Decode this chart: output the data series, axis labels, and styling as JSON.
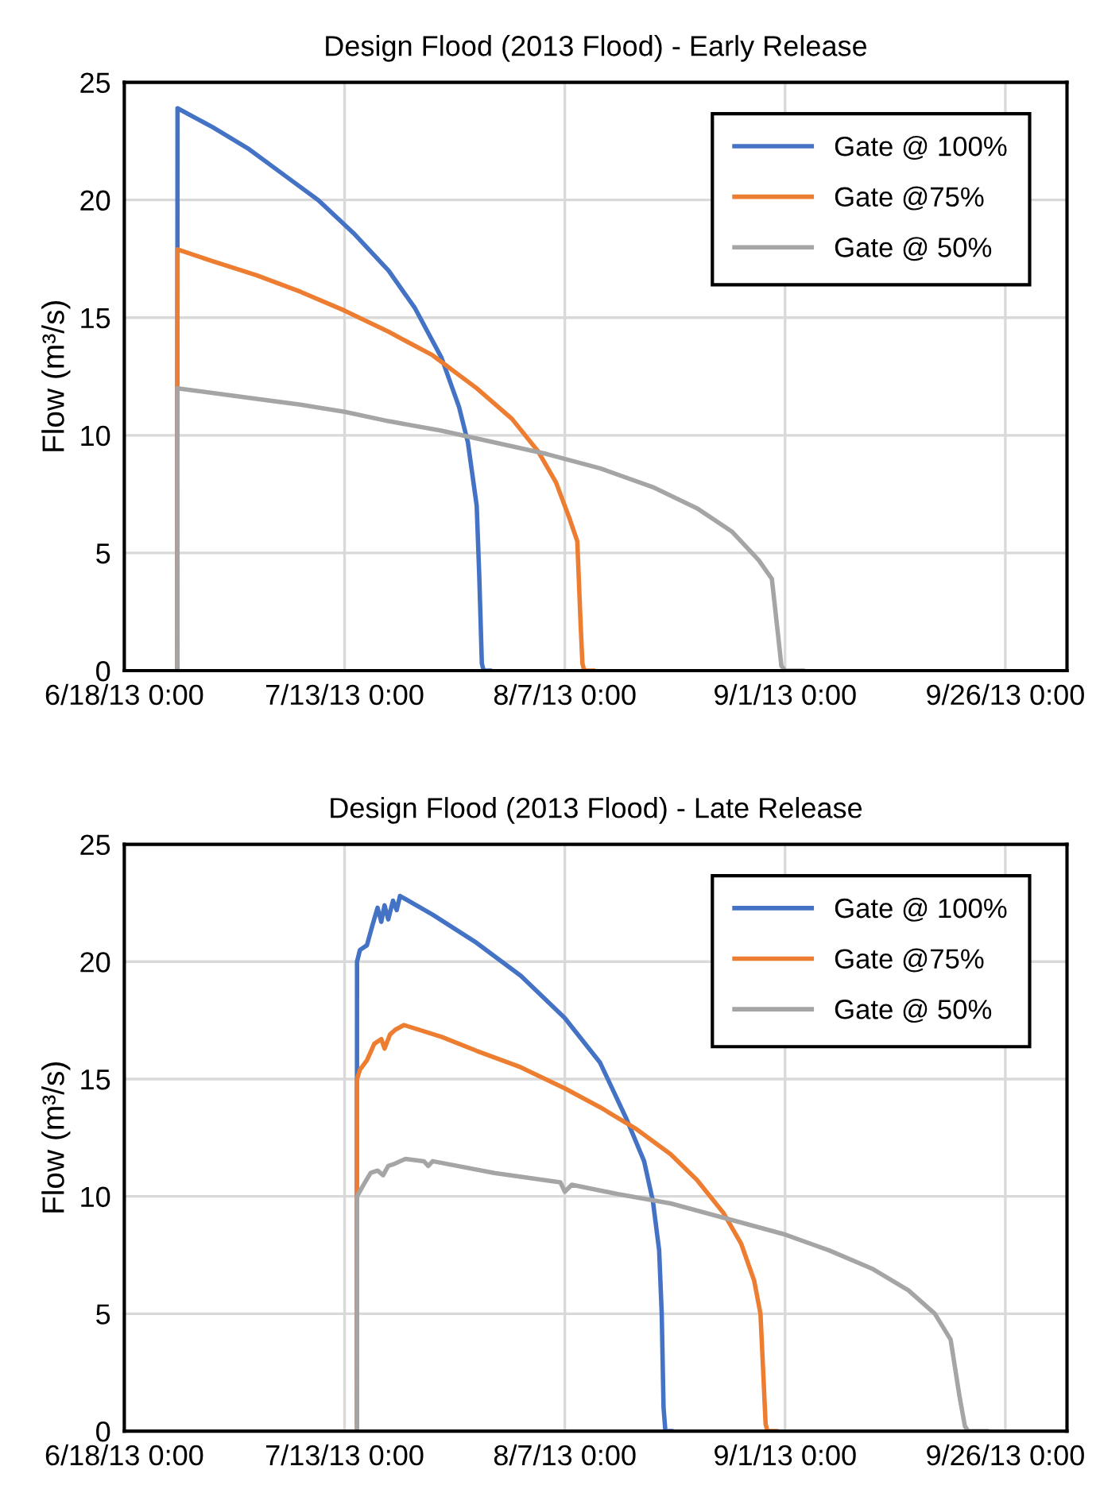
{
  "chart_data": [
    {
      "type": "line",
      "title": "Design Flood (2013 Flood) - Early Release",
      "ylabel": "Flow (m³/s)",
      "xlim": [
        "2013-06-18",
        "2013-10-03"
      ],
      "xticks": [
        {
          "value": "2013-06-18",
          "label": "6/18/13 0:00"
        },
        {
          "value": "2013-07-13",
          "label": "7/13/13 0:00"
        },
        {
          "value": "2013-08-07",
          "label": "8/7/13 0:00"
        },
        {
          "value": "2013-09-01",
          "label": "9/1/13 0:00"
        },
        {
          "value": "2013-09-26",
          "label": "9/26/13 0:00"
        }
      ],
      "ylim": [
        0,
        25
      ],
      "yticks": [
        0,
        5,
        10,
        15,
        20,
        25
      ],
      "grid": true,
      "legend": "top right",
      "marker": "none",
      "line_style": "solid",
      "series": [
        {
          "name": "Gate @ 100%",
          "color": "#4472c4",
          "x": [
            "2013-06-24T00:00",
            "2013-06-24T01:00",
            "2013-06-28",
            "2013-07-02",
            "2013-07-06",
            "2013-07-10",
            "2013-07-14",
            "2013-07-18",
            "2013-07-21",
            "2013-07-24",
            "2013-07-26",
            "2013-07-27",
            "2013-07-28",
            "2013-07-28T07:00",
            "2013-07-28T14:00",
            "2013-07-28T19:00",
            "2013-07-29T12:00"
          ],
          "values": [
            0,
            23.9,
            23.1,
            22.2,
            21.1,
            20.0,
            18.6,
            17.0,
            15.4,
            13.3,
            11.2,
            9.7,
            7.0,
            4,
            0.3,
            0,
            0
          ]
        },
        {
          "name": "Gate @75%",
          "color": "#ed7d31",
          "x": [
            "2013-06-24T00:00",
            "2013-06-24T01:00",
            "2013-06-28",
            "2013-07-03",
            "2013-07-08",
            "2013-07-13",
            "2013-07-18",
            "2013-07-23",
            "2013-07-28",
            "2013-08-01",
            "2013-08-04",
            "2013-08-06",
            "2013-08-07T12:00",
            "2013-08-08T10:00",
            "2013-08-08T19:00",
            "2013-08-09T00:00",
            "2013-08-09T05:00",
            "2013-08-10T05:00"
          ],
          "values": [
            0,
            17.9,
            17.4,
            16.8,
            16.1,
            15.3,
            14.4,
            13.4,
            12.0,
            10.7,
            9.3,
            8.0,
            6.5,
            5.5,
            2,
            0.3,
            0,
            0
          ]
        },
        {
          "name": "Gate @ 50%",
          "color": "#a5a5a5",
          "x": [
            "2013-06-24T00:00",
            "2013-06-24T01:00",
            "2013-06-30",
            "2013-07-08",
            "2013-07-13",
            "2013-07-18",
            "2013-07-24",
            "2013-07-30",
            "2013-08-05",
            "2013-08-11",
            "2013-08-17",
            "2013-08-22",
            "2013-08-26",
            "2013-08-29",
            "2013-08-30T12:00",
            "2013-08-31T05:00",
            "2013-08-31T14:00",
            "2013-09-01",
            "2013-09-03"
          ],
          "values": [
            0,
            12.0,
            11.7,
            11.3,
            11.0,
            10.6,
            10.2,
            9.7,
            9.2,
            8.6,
            7.8,
            6.9,
            5.9,
            4.7,
            3.9,
            1.5,
            0.2,
            0,
            0
          ]
        }
      ]
    },
    {
      "type": "line",
      "title": "Design Flood (2013 Flood) - Late Release",
      "ylabel": "Flow (m³/s)",
      "xlim": [
        "2013-06-18",
        "2013-10-03"
      ],
      "xticks": [
        {
          "value": "2013-06-18",
          "label": "6/18/13 0:00"
        },
        {
          "value": "2013-07-13",
          "label": "7/13/13 0:00"
        },
        {
          "value": "2013-08-07",
          "label": "8/7/13 0:00"
        },
        {
          "value": "2013-09-01",
          "label": "9/1/13 0:00"
        },
        {
          "value": "2013-09-26",
          "label": "9/26/13 0:00"
        }
      ],
      "ylim": [
        0,
        25
      ],
      "yticks": [
        0,
        5,
        10,
        15,
        20,
        25
      ],
      "grid": true,
      "legend": "top right",
      "marker": "none",
      "line_style": "solid",
      "series": [
        {
          "name": "Gate @ 100%",
          "color": "#4472c4",
          "x": [
            "2013-07-14T09:30",
            "2013-07-14T10:00",
            "2013-07-14T18:00",
            "2013-07-15T13:00",
            "2013-07-16T03:00",
            "2013-07-16T18:00",
            "2013-07-17T04:00",
            "2013-07-17T13:00",
            "2013-07-17T23:00",
            "2013-07-18T12:00",
            "2013-07-18T22:00",
            "2013-07-19T07:00",
            "2013-07-23",
            "2013-07-28",
            "2013-08-02",
            "2013-08-07",
            "2013-08-11",
            "2013-08-14",
            "2013-08-16",
            "2013-08-17",
            "2013-08-17T17:00",
            "2013-08-18T00:00",
            "2013-08-18T05:00",
            "2013-08-18T10:00",
            "2013-08-19T02:00"
          ],
          "values": [
            0,
            20.0,
            20.5,
            20.7,
            21.5,
            22.3,
            21.7,
            22.4,
            21.8,
            22.6,
            22.2,
            22.8,
            22.0,
            20.8,
            19.4,
            17.6,
            15.7,
            13.3,
            11.5,
            9.8,
            7.7,
            5,
            1,
            0,
            0
          ]
        },
        {
          "name": "Gate @75%",
          "color": "#ed7d31",
          "x": [
            "2013-07-14T09:30",
            "2013-07-14T10:00",
            "2013-07-14T18:00",
            "2013-07-15T13:00",
            "2013-07-16T09:00",
            "2013-07-17T04:00",
            "2013-07-17T13:00",
            "2013-07-18T04:00",
            "2013-07-18T18:00",
            "2013-07-19T18:00",
            "2013-07-24",
            "2013-07-28",
            "2013-08-02",
            "2013-08-07",
            "2013-08-11",
            "2013-08-15",
            "2013-08-19",
            "2013-08-22",
            "2013-08-25",
            "2013-08-27",
            "2013-08-28T12:00",
            "2013-08-29T05:00",
            "2013-08-29T14:00",
            "2013-08-29T19:00",
            "2013-08-30",
            "2013-08-31"
          ],
          "values": [
            0,
            15.0,
            15.4,
            15.8,
            16.5,
            16.7,
            16.3,
            16.9,
            17.1,
            17.3,
            16.8,
            16.2,
            15.5,
            14.6,
            13.8,
            12.9,
            11.8,
            10.7,
            9.3,
            8.0,
            6.4,
            5.0,
            2,
            0.3,
            0,
            0
          ]
        },
        {
          "name": "Gate @ 50%",
          "color": "#a5a5a5",
          "x": [
            "2013-07-14T09:30",
            "2013-07-14T10:00",
            "2013-07-15T04:00",
            "2013-07-15T23:00",
            "2013-07-16T18:00",
            "2013-07-17T09:00",
            "2013-07-17T23:00",
            "2013-07-18T18:00",
            "2013-07-19T22:00",
            "2013-07-22",
            "2013-07-22T12:00",
            "2013-07-23",
            "2013-07-30",
            "2013-08-06T12:00",
            "2013-08-07",
            "2013-08-07T19:00",
            "2013-08-13",
            "2013-08-19",
            "2013-08-25T22:00",
            "2013-08-31T19:00",
            "2013-09-06",
            "2013-09-11",
            "2013-09-15",
            "2013-09-18",
            "2013-09-19T19:00",
            "2013-09-20T19:00",
            "2013-09-21T10:00",
            "2013-09-21T19:00",
            "2013-09-23T22:00"
          ],
          "values": [
            0,
            10.0,
            10.5,
            11.0,
            11.1,
            10.9,
            11.3,
            11.4,
            11.6,
            11.5,
            11.3,
            11.5,
            11.0,
            10.6,
            10.2,
            10.5,
            10.1,
            9.7,
            9.0,
            8.4,
            7.7,
            6.9,
            6.0,
            5.0,
            3.9,
            1.5,
            0.2,
            0,
            0
          ]
        }
      ]
    }
  ]
}
